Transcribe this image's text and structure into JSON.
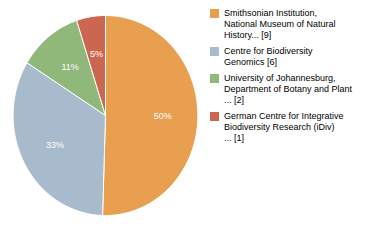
{
  "chart_data": {
    "type": "pie",
    "categories": [
      "Smithsonian Institution,\nNational Museum of Natural\nHistory... [9]",
      "Centre for Biodiversity\nGenomics [6]",
      "University of Johannesburg,\nDepartment of Botany and Plant\n... [2]",
      "German Centre for Integrative\nBiodiversity Research (iDiv)\n... [1]"
    ],
    "values": [
      50,
      33,
      11,
      5
    ],
    "value_labels": [
      "50%",
      "33%",
      "11%",
      "5%"
    ],
    "colors": [
      "#E8A050",
      "#A8BBCC",
      "#8FB87A",
      "#CC6650"
    ],
    "data_labels": true,
    "legend": "right"
  }
}
